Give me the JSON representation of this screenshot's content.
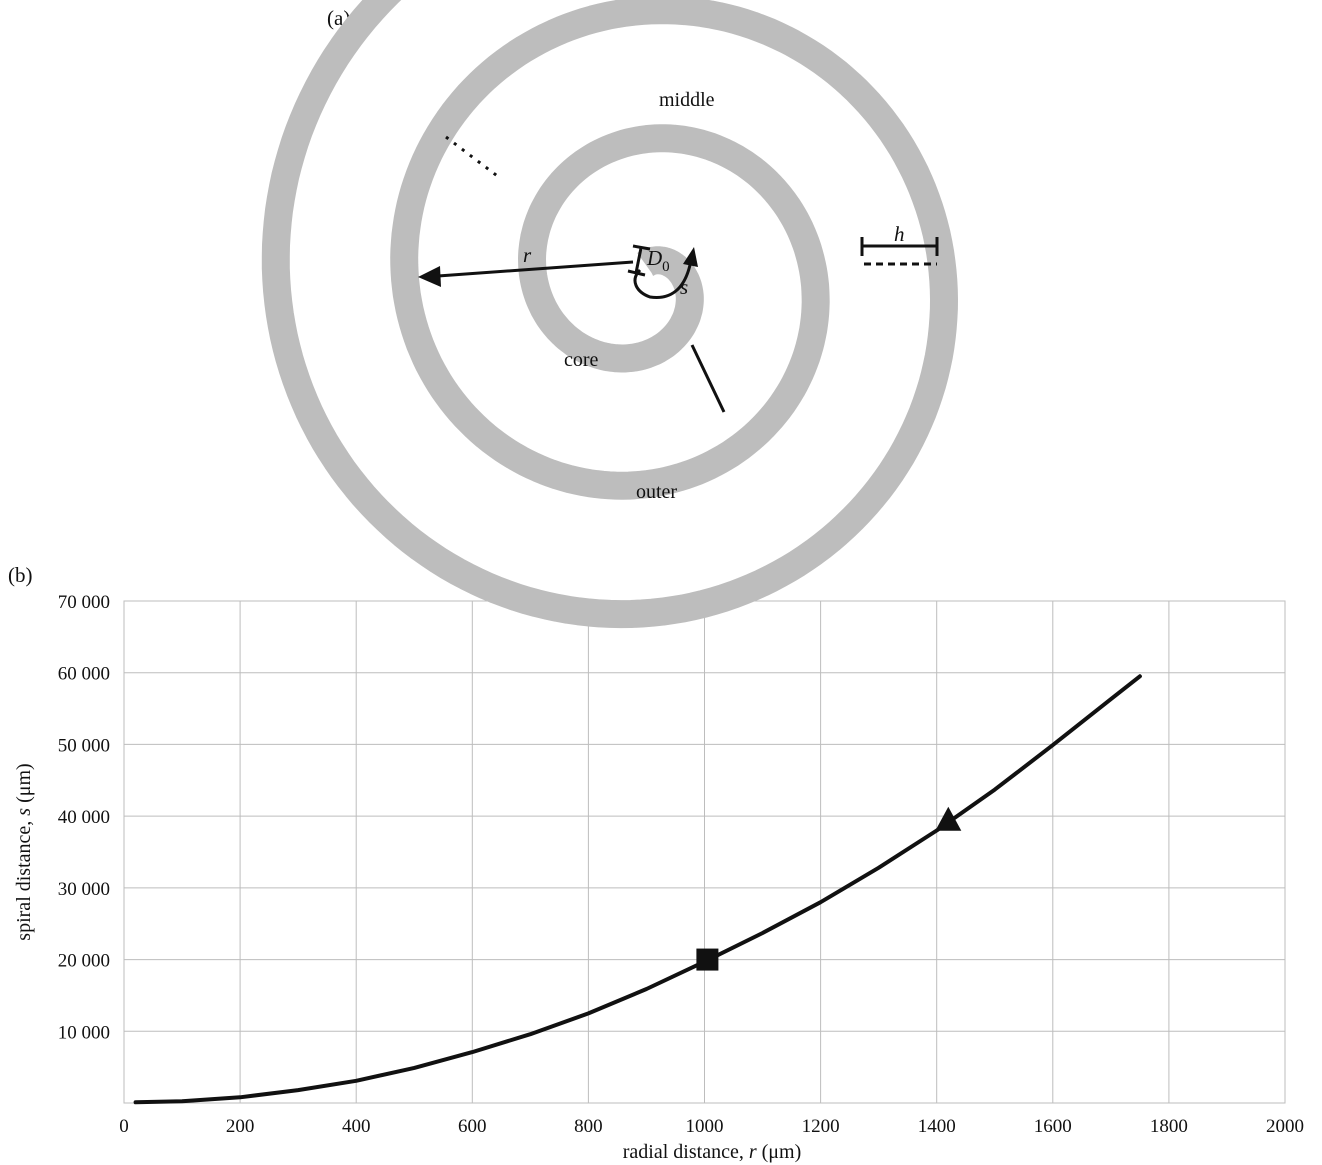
{
  "panel_a": {
    "label": "(a)",
    "regions": {
      "middle": "middle",
      "core": "core",
      "outer": "outer"
    },
    "symbols": {
      "r": "r",
      "s": "s",
      "h": "h",
      "d0_main": "D",
      "d0_sub": "0"
    }
  },
  "panel_b": {
    "label": "(b)"
  },
  "chart_data": {
    "type": "line",
    "xlabel_prefix": "radial distance, ",
    "xlabel_var": "r",
    "xlabel_unit": " (μm)",
    "ylabel_prefix": "spiral distance, ",
    "ylabel_var": "s",
    "ylabel_unit": " (μm)",
    "xlim": [
      0,
      2000
    ],
    "ylim": [
      0,
      70000
    ],
    "x_ticks": [
      0,
      200,
      400,
      600,
      800,
      1000,
      1200,
      1400,
      1600,
      1800,
      2000
    ],
    "x_tick_labels": [
      "0",
      "200",
      "400",
      "600",
      "800",
      "1000",
      "1200",
      "1400",
      "1600",
      "1800",
      "2000"
    ],
    "y_ticks": [
      10000,
      20000,
      30000,
      40000,
      50000,
      60000,
      70000
    ],
    "y_tick_labels": [
      "10 000",
      "20 000",
      "30 000",
      "40 000",
      "50 000",
      "60 000",
      "70 000"
    ],
    "grid": true,
    "series": [
      {
        "x": [
          20,
          100,
          200,
          300,
          400,
          500,
          600,
          700,
          800,
          900,
          1000,
          1100,
          1200,
          1300,
          1400,
          1500,
          1600,
          1700,
          1750
        ],
        "y": [
          100,
          250,
          800,
          1800,
          3100,
          4900,
          7100,
          9600,
          12500,
          15900,
          19700,
          23700,
          28000,
          32800,
          38000,
          43700,
          49900,
          56300,
          59500
        ]
      }
    ],
    "markers": [
      {
        "shape": "square",
        "x": 1005,
        "y": 20000
      },
      {
        "shape": "triangle",
        "x": 1420,
        "y": 39500
      }
    ]
  }
}
